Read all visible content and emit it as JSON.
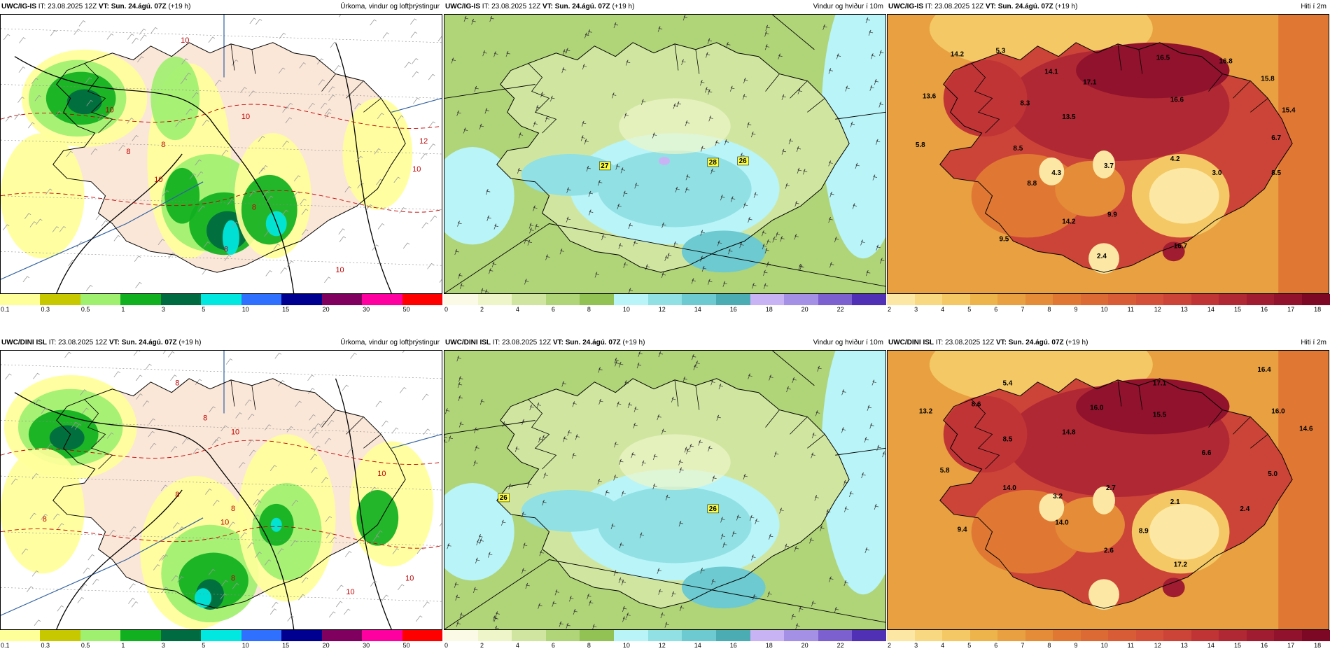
{
  "panels": [
    {
      "id": "p1",
      "model": "UWC/IG-IS",
      "it_label": "IT:",
      "it": "23.08.2025 12Z",
      "vt_label": "VT:",
      "vt": "Sun. 24.ágú. 07Z",
      "lead": "(+19 h)",
      "title": "Úrkoma, vindur og loftþrýstingur",
      "type": "precip"
    },
    {
      "id": "p2",
      "model": "UWC/IG-IS",
      "it_label": "IT:",
      "it": "23.08.2025 12Z",
      "vt_label": "VT:",
      "vt": "Sun. 24.ágú. 07Z",
      "lead": "(+19 h)",
      "title": "Vindur og hviður í 10m",
      "type": "wind"
    },
    {
      "id": "p3",
      "model": "UWC/IG-IS",
      "it_label": "IT:",
      "it": "23.08.2025 12Z",
      "vt_label": "VT:",
      "vt": "Sun. 24.ágú. 07Z",
      "lead": "(+19 h)",
      "title": "Hiti í 2m",
      "type": "temp"
    },
    {
      "id": "p4",
      "model": "UWC/DINI ISL",
      "it_label": "IT:",
      "it": "23.08.2025 12Z",
      "vt_label": "VT:",
      "vt": "Sun. 24.ágú. 07Z",
      "lead": "(+19 h)",
      "title": "Úrkoma, vindur og loftþrýstingur",
      "type": "precip"
    },
    {
      "id": "p5",
      "model": "UWC/DINI ISL",
      "it_label": "IT:",
      "it": "23.08.2025 12Z",
      "vt_label": "VT:",
      "vt": "Sun. 24.ágú. 07Z",
      "lead": "(+19 h)",
      "title": "Vindur og hviður í 10m",
      "type": "wind"
    },
    {
      "id": "p6",
      "model": "UWC/DINI ISL",
      "it_label": "IT:",
      "it": "23.08.2025 12Z",
      "vt_label": "VT:",
      "vt": "Sun. 24.ágú. 07Z",
      "lead": "(+19 h)",
      "title": "Hiti í 2m",
      "type": "temp"
    }
  ],
  "colorbars": {
    "precip": {
      "ticks": [
        "0.1",
        "0.3",
        "0.5",
        "1",
        "3",
        "5",
        "10",
        "15",
        "20",
        "30",
        "50"
      ],
      "colors": [
        "#ffff9a",
        "#c8c800",
        "#a0f070",
        "#10b020",
        "#006a40",
        "#00e8e0",
        "#3070ff",
        "#000090",
        "#800060",
        "#ff00a0",
        "#ff0000"
      ]
    },
    "wind": {
      "ticks": [
        "0",
        "2",
        "4",
        "6",
        "8",
        "10",
        "12",
        "14",
        "16",
        "18",
        "20",
        "22"
      ],
      "colors": [
        "#fafae6",
        "#eef5c8",
        "#d0e6a0",
        "#b0d478",
        "#92c254",
        "#b8f4f8",
        "#90e0e4",
        "#6ccad0",
        "#4cacb4",
        "#c8b4f4",
        "#a490e4",
        "#7c60d0",
        "#5030b4"
      ]
    },
    "temp": {
      "ticks": [
        "2",
        "3",
        "4",
        "5",
        "6",
        "7",
        "8",
        "9",
        "10",
        "11",
        "12",
        "13",
        "14",
        "15",
        "16",
        "17",
        "18"
      ],
      "colors": [
        "#fce8a4",
        "#f8d880",
        "#f4c864",
        "#eeb44c",
        "#e8a040",
        "#e48c38",
        "#e07834",
        "#dc6a34",
        "#d85c36",
        "#d45038",
        "#cc4438",
        "#c03436",
        "#b02834",
        "#a01c30",
        "#90122c",
        "#7c0826"
      ]
    }
  },
  "wind_markers": {
    "p2": [
      "27",
      "28",
      "26"
    ],
    "p5": [
      "26",
      "26"
    ]
  },
  "temp_labels": {
    "p3": [
      "14.2",
      "5.3",
      "14.1",
      "16.5",
      "16.8",
      "15.8",
      "13.6",
      "8.3",
      "17.1",
      "16.6",
      "15.4",
      "13.5",
      "6.7",
      "5.8",
      "8.5",
      "4.3",
      "3.7",
      "4.2",
      "3.0",
      "8.8",
      "8.5",
      "9.9",
      "14.2",
      "16.7",
      "9.5",
      "2.4"
    ],
    "p6": [
      "16.4",
      "5.4",
      "17.1",
      "13.2",
      "8.6",
      "16.0",
      "15.5",
      "16.0",
      "14.8",
      "14.6",
      "8.5",
      "6.6",
      "5.8",
      "3.2",
      "2.7",
      "5.0",
      "14.0",
      "2.1",
      "2.4",
      "14.0",
      "17.2",
      "9.4",
      "8.9",
      "2.6"
    ]
  },
  "precip_isolines": {
    "p1": [
      "10",
      "10",
      "10",
      "8",
      "8",
      "12",
      "10",
      "8",
      "10",
      "8",
      "10"
    ],
    "p4": [
      "8",
      "8",
      "8",
      "10",
      "8",
      "10",
      "8",
      "10",
      "8",
      "10",
      "10"
    ]
  }
}
